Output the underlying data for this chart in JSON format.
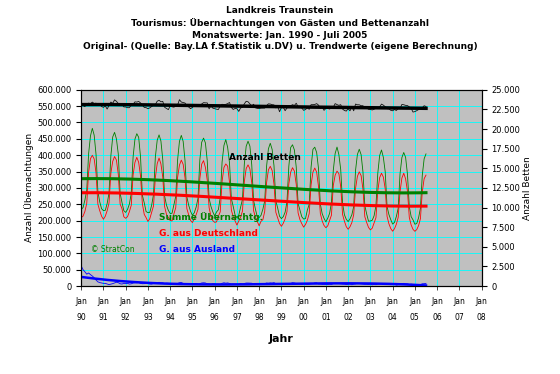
{
  "title_line1": "Landkreis Traunstein",
  "title_line2": "Tourismus: Übernachtungen von Gästen und Bettenanzahl",
  "title_line3": "Monatswerte: Jan. 1990 - Juli 2005",
  "title_line4": "Original- (Quelle: Bay.LA f.Statistik u.DV) u. Trendwerte (eigene Berechnung)",
  "xlabel": "Jahr",
  "ylabel_left": "Anzahl Übernachtungen",
  "ylabel_right": "Anzahl Betten",
  "ylim_left": [
    0,
    600000
  ],
  "ylim_right": [
    0,
    25000
  ],
  "yticks_left": [
    0,
    50000,
    100000,
    150000,
    200000,
    250000,
    300000,
    350000,
    400000,
    450000,
    500000,
    550000,
    600000
  ],
  "ytick_labels_left": [
    "0",
    "50.000",
    "100.000",
    "150.000",
    "200.000",
    "250.000",
    "300.000",
    "350.000",
    "400.000",
    "450.000",
    "500.000",
    "550.000",
    "600.000"
  ],
  "yticks_right": [
    0,
    2500,
    5000,
    7500,
    10000,
    12500,
    15000,
    17500,
    20000,
    22500,
    25000
  ],
  "ytick_labels_right": [
    "0",
    "2.500",
    "5.000",
    "7.500",
    "10.000",
    "12.500",
    "15.000",
    "17.500",
    "20.000",
    "22.500",
    "25.000"
  ],
  "background_color": "#c0c0c0",
  "grid_color": "cyan",
  "fig_bg_color": "#ffffff",
  "copyright_text": "© StratCon",
  "legend_summe": "Summe Übernachtg.",
  "legend_deutschland": "G. aus Deutschland",
  "legend_ausland": "G. aus Ausland",
  "legend_betten": "Anzahl Betten",
  "color_summe_orig": "#008000",
  "color_summe_trend": "#008000",
  "color_de_orig": "#ff0000",
  "color_de_trend": "#ff0000",
  "color_ausland_orig": "#0000ff",
  "color_ausland_trend": "#0000ff",
  "color_betten_orig": "#000000",
  "color_betten_trend": "#000000"
}
